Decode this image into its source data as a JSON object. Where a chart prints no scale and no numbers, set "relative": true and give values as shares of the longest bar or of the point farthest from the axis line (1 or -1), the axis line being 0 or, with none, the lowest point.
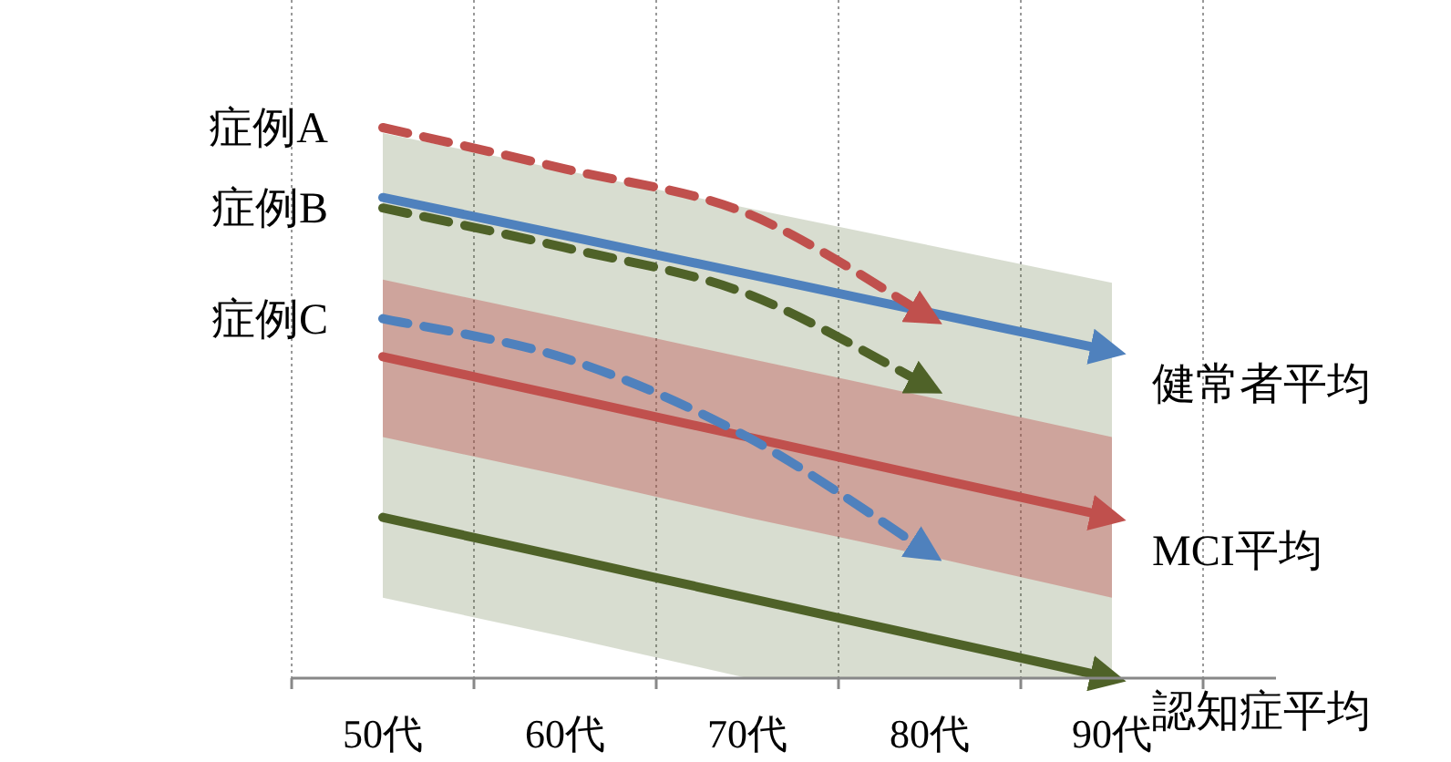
{
  "chart_data": {
    "type": "line",
    "relative": true,
    "categories": [
      "50代",
      "60代",
      "70代",
      "80代",
      "90代"
    ],
    "grid": "x",
    "legend": false,
    "series": [
      {
        "name": "健常者平均",
        "color": "#4f81bd",
        "line_style": "solid",
        "values": [
          0.873,
          0.804,
          0.734,
          0.664,
          0.594
        ]
      },
      {
        "name": "MCI平均",
        "color": "#c0504d",
        "line_style": "solid",
        "values": [
          0.584,
          0.511,
          0.438,
          0.365,
          0.292
        ],
        "upper": [
          0.724,
          0.653,
          0.581,
          0.51,
          0.438
        ],
        "lower": [
          0.438,
          0.367,
          0.292,
          0.221,
          0.146
        ]
      },
      {
        "name": "認知症平均",
        "color": "#4f6228",
        "line_style": "solid",
        "values": [
          0.292,
          0.219,
          0.146,
          0.073,
          0
        ],
        "upper": [
          0.99,
          0.922,
          0.854,
          0.786,
          0.718
        ],
        "lower": [
          0.146,
          0.075,
          0,
          0,
          0
        ]
      },
      {
        "name": "症例A",
        "color": "#c0504d",
        "line_style": "dashed",
        "values": [
          1,
          0.925,
          0.844,
          0.656,
          null
        ]
      },
      {
        "name": "症例B",
        "color": "#4f6228",
        "line_style": "dashed",
        "values": [
          0.854,
          0.782,
          0.698,
          0.529,
          null
        ]
      },
      {
        "name": "症例C",
        "color": "#4f81bd",
        "line_style": "dashed",
        "values": [
          0.653,
          0.581,
          0.438,
          0.227,
          null
        ]
      }
    ]
  }
}
